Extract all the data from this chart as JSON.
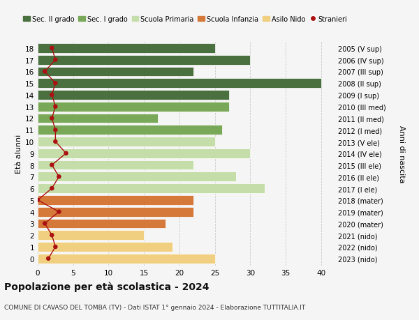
{
  "ages": [
    18,
    17,
    16,
    15,
    14,
    13,
    12,
    11,
    10,
    9,
    8,
    7,
    6,
    5,
    4,
    3,
    2,
    1,
    0
  ],
  "bar_values": [
    25,
    30,
    22,
    40,
    27,
    27,
    17,
    26,
    25,
    30,
    22,
    28,
    32,
    22,
    22,
    18,
    15,
    19,
    25
  ],
  "right_labels": [
    "2005 (V sup)",
    "2006 (IV sup)",
    "2007 (III sup)",
    "2008 (II sup)",
    "2009 (I sup)",
    "2010 (III med)",
    "2011 (II med)",
    "2012 (I med)",
    "2013 (V ele)",
    "2014 (IV ele)",
    "2015 (III ele)",
    "2016 (II ele)",
    "2017 (I ele)",
    "2018 (mater)",
    "2019 (mater)",
    "2020 (mater)",
    "2021 (nido)",
    "2022 (nido)",
    "2023 (nido)"
  ],
  "stranieri_values": [
    2,
    2.5,
    1,
    2.5,
    2,
    2.5,
    2,
    2.5,
    2.5,
    4,
    2,
    3,
    2,
    0,
    3,
    1,
    2,
    2.5,
    1.5
  ],
  "bar_colors": [
    "#4a7040",
    "#4a7040",
    "#4a7040",
    "#4a7040",
    "#4a7040",
    "#78a858",
    "#78a858",
    "#78a858",
    "#c5dda8",
    "#c5dda8",
    "#c5dda8",
    "#c5dda8",
    "#c5dda8",
    "#d4793a",
    "#d4793a",
    "#d4793a",
    "#f0d080",
    "#f0d080",
    "#f0d080"
  ],
  "legend_labels": [
    "Sec. II grado",
    "Sec. I grado",
    "Scuola Primaria",
    "Scuola Infanzia",
    "Asilo Nido",
    "Stranieri"
  ],
  "legend_colors": [
    "#4a7040",
    "#78a858",
    "#c5dda8",
    "#d4793a",
    "#f0d080",
    "#cc0000"
  ],
  "title": "Popolazione per età scolastica - 2024",
  "subtitle": "COMUNE DI CAVASO DEL TOMBA (TV) - Dati ISTAT 1° gennaio 2024 - Elaborazione TUTTITALIA.IT",
  "ylabel": "Età alunni",
  "right_ylabel": "Anni di nascita",
  "xlim": [
    0,
    42
  ],
  "bg_color": "#f5f5f5",
  "stranieri_color": "#aa1111",
  "stranieri_line_color": "#aa1111",
  "grid_color": "#cccccc",
  "bar_height": 0.82
}
